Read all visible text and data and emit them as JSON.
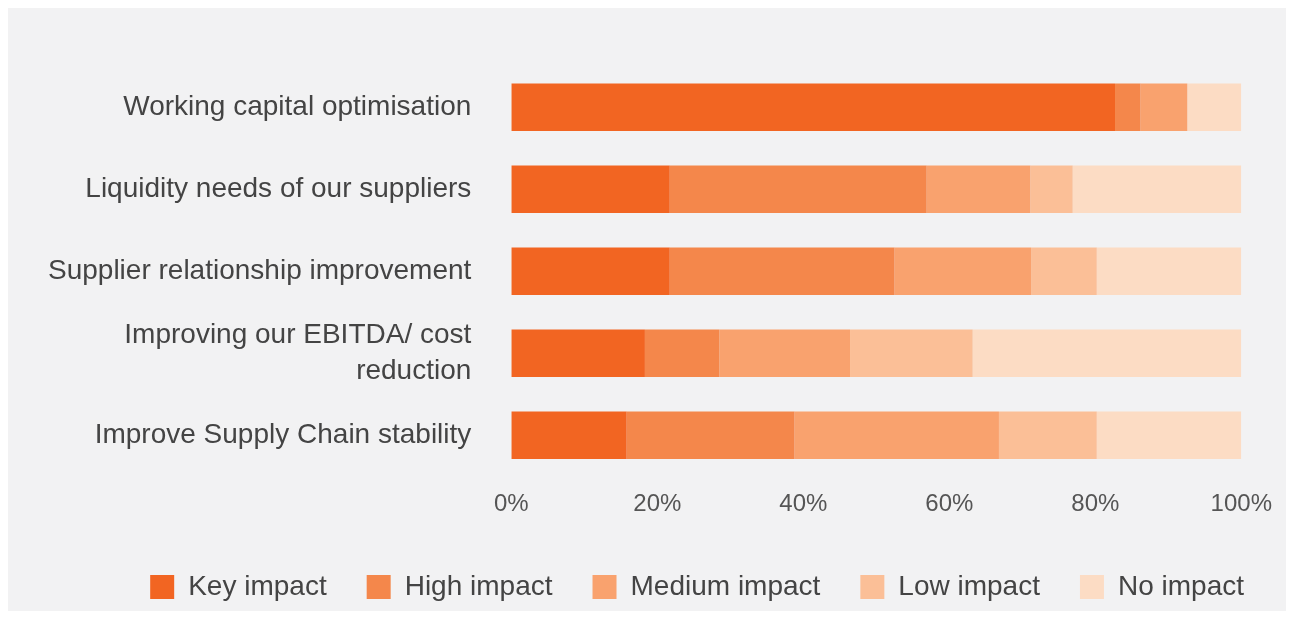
{
  "chart_data": {
    "type": "bar",
    "orientation": "horizontal",
    "stacked": true,
    "categories": [
      "Working capital optimisation",
      "Liquidity needs of our suppliers",
      "Supplier relationship improvement",
      "Improving our EBITDA/ cost reduction",
      "Improve Supply Chain stability"
    ],
    "series": [
      {
        "name": "Key impact",
        "color": "#f26522",
        "values": [
          82.7,
          21.7,
          21.7,
          18.3,
          15.8
        ]
      },
      {
        "name": "High impact",
        "color": "#f4874b",
        "values": [
          3.5,
          35.2,
          30.8,
          10.2,
          23.0
        ]
      },
      {
        "name": "Medium impact",
        "color": "#f9a26e",
        "values": [
          6.4,
          14.2,
          18.7,
          17.9,
          28.0
        ]
      },
      {
        "name": "Low impact",
        "color": "#fbbf97",
        "values": [
          0,
          5.8,
          9.0,
          16.8,
          13.4
        ]
      },
      {
        "name": "No impact",
        "color": "#fcdcc4",
        "values": [
          7.4,
          23.1,
          19.8,
          36.8,
          19.8
        ]
      }
    ],
    "xlim": [
      0,
      100
    ],
    "xticks": [
      {
        "value": 0,
        "label": "0%"
      },
      {
        "value": 20,
        "label": "20%"
      },
      {
        "value": 40,
        "label": "40%"
      },
      {
        "value": 60,
        "label": "60%"
      },
      {
        "value": 80,
        "label": "80%"
      },
      {
        "value": 100,
        "label": "100%"
      }
    ],
    "grid": false,
    "legend": "bottom"
  }
}
